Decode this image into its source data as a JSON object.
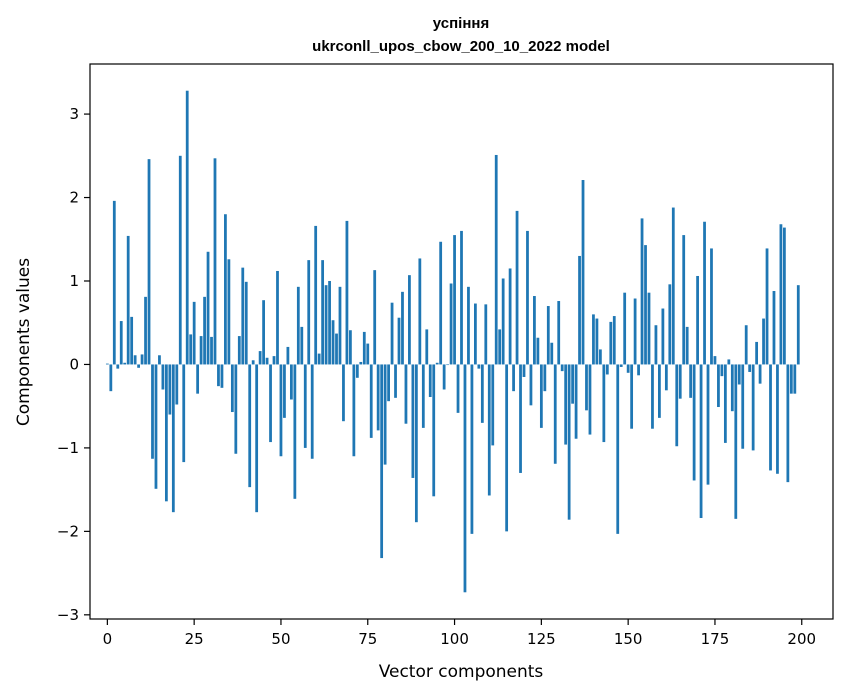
{
  "chart_data": {
    "type": "bar",
    "title": "успіння",
    "subtitle": "ukrconll_upos_cbow_200_10_2022 model",
    "xlabel": "Vector components",
    "ylabel": "Components values",
    "xlim": [
      -5,
      209
    ],
    "ylim": [
      -3.05,
      3.6
    ],
    "xticks": [
      0,
      25,
      50,
      75,
      100,
      125,
      150,
      175,
      200
    ],
    "yticks": [
      -3,
      -2,
      -1,
      0,
      1,
      2,
      3
    ],
    "grid": false,
    "bar_color": "#1f77b4",
    "values": [
      0.01,
      -0.32,
      1.96,
      -0.05,
      0.52,
      0.02,
      1.54,
      0.57,
      0.11,
      -0.04,
      0.12,
      0.81,
      2.46,
      -1.13,
      -1.49,
      0.11,
      -0.3,
      -1.64,
      -0.6,
      -1.77,
      -0.48,
      2.5,
      -1.17,
      3.28,
      0.36,
      0.75,
      -0.35,
      0.34,
      0.81,
      1.35,
      0.33,
      2.47,
      -0.26,
      -0.28,
      1.8,
      1.26,
      -0.57,
      -1.07,
      0.34,
      1.16,
      0.99,
      -1.47,
      0.05,
      -1.77,
      0.16,
      0.77,
      0.08,
      -0.93,
      0.1,
      1.12,
      -1.1,
      -0.64,
      0.21,
      -0.42,
      -1.61,
      0.93,
      0.45,
      -1.0,
      1.25,
      -1.13,
      1.66,
      0.13,
      1.25,
      0.95,
      1.0,
      0.53,
      0.37,
      0.93,
      -0.68,
      1.72,
      0.41,
      -1.1,
      -0.16,
      0.03,
      0.39,
      0.25,
      -0.88,
      1.13,
      -0.79,
      -2.32,
      -1.2,
      -0.44,
      0.74,
      -0.4,
      0.56,
      0.87,
      -0.71,
      1.07,
      -1.36,
      -1.89,
      1.27,
      -0.76,
      0.42,
      -0.39,
      -1.58,
      0.02,
      1.47,
      -0.3,
      0.0,
      0.97,
      1.55,
      -0.58,
      1.6,
      -2.73,
      0.93,
      -2.03,
      0.73,
      -0.05,
      -0.7,
      0.72,
      -1.57,
      -0.97,
      2.51,
      0.42,
      1.03,
      -2.0,
      1.15,
      -0.32,
      1.84,
      -1.3,
      -0.15,
      1.6,
      -0.49,
      0.82,
      0.32,
      -0.76,
      -0.32,
      0.7,
      0.26,
      -1.19,
      0.76,
      -0.08,
      -0.96,
      -1.86,
      -0.47,
      -0.89,
      1.3,
      2.21,
      -0.55,
      -0.84,
      0.6,
      0.55,
      0.18,
      -0.93,
      -0.12,
      0.51,
      0.58,
      -2.03,
      -0.03,
      0.86,
      -0.1,
      -0.77,
      0.79,
      -0.13,
      1.75,
      1.43,
      0.86,
      -0.77,
      0.47,
      -0.64,
      0.67,
      -0.31,
      0.96,
      1.88,
      -0.98,
      -0.41,
      1.55,
      0.45,
      -0.4,
      -1.39,
      1.06,
      -1.84,
      1.71,
      -1.44,
      1.39,
      0.1,
      -0.51,
      -0.14,
      -0.94,
      0.06,
      -0.56,
      -1.85,
      -0.24,
      -1.01,
      0.47,
      -0.09,
      -1.03,
      0.27,
      -0.23,
      0.55,
      1.39,
      -1.27,
      0.88,
      -1.31,
      1.68,
      1.64,
      -1.41,
      -0.35,
      -0.35,
      0.95
    ]
  }
}
